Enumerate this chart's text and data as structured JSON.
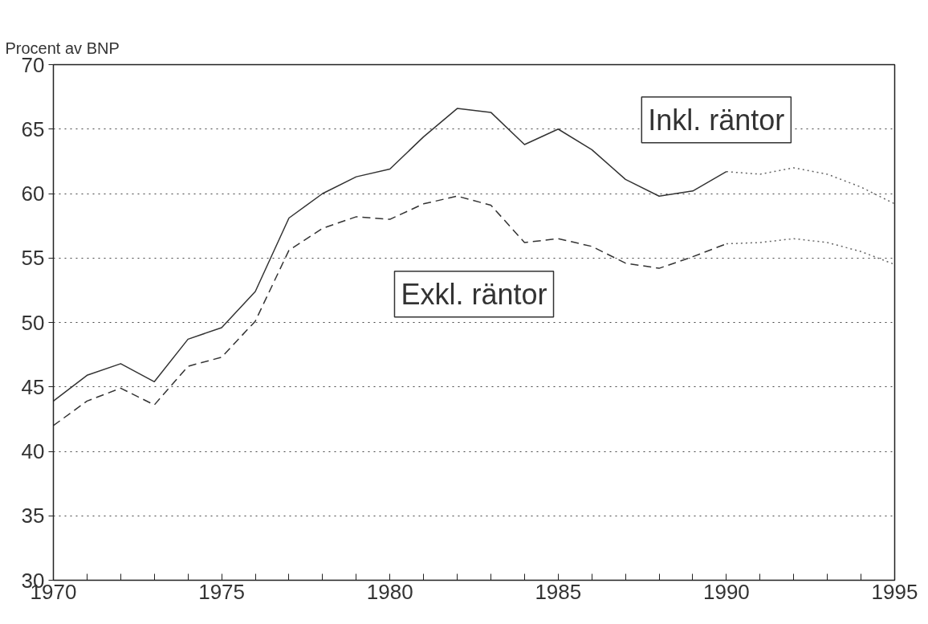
{
  "chart_data": {
    "type": "line",
    "ylabel": "Procent av BNP",
    "xlim": [
      1970,
      1995
    ],
    "ylim": [
      30,
      70
    ],
    "xticks": [
      1970,
      {
        "value": 1971,
        "label": null
      },
      {
        "value": 1972,
        "label": null
      },
      {
        "value": 1973,
        "label": null
      },
      {
        "value": 1974,
        "label": null
      },
      1975,
      {
        "value": 1976,
        "label": null
      },
      {
        "value": 1977,
        "label": null
      },
      {
        "value": 1978,
        "label": null
      },
      {
        "value": 1979,
        "label": null
      },
      1980,
      {
        "value": 1981,
        "label": null
      },
      {
        "value": 1982,
        "label": null
      },
      {
        "value": 1983,
        "label": null
      },
      {
        "value": 1984,
        "label": null
      },
      1985,
      {
        "value": 1986,
        "label": null
      },
      {
        "value": 1987,
        "label": null
      },
      {
        "value": 1988,
        "label": null
      },
      {
        "value": 1989,
        "label": null
      },
      1990,
      {
        "value": 1991,
        "label": null
      },
      {
        "value": 1992,
        "label": null
      },
      {
        "value": 1993,
        "label": null
      },
      {
        "value": 1994,
        "label": null
      },
      1995
    ],
    "yticks": [
      30,
      35,
      40,
      45,
      50,
      55,
      60,
      65,
      70
    ],
    "grid": "y",
    "annotations": [
      "Inkl. räntor",
      "Exkl. räntor"
    ],
    "series": [
      {
        "color": "#333333",
        "line_style": "solid",
        "x": [
          1970,
          1971,
          1972,
          1973,
          1974,
          1975,
          1976,
          1977,
          1978,
          1979,
          1980,
          1981,
          1982,
          1983,
          1984,
          1985,
          1986,
          1987,
          1988,
          1989,
          1990
        ],
        "values": [
          43.9,
          45.9,
          46.8,
          45.4,
          48.7,
          49.6,
          52.4,
          58.1,
          60.0,
          61.3,
          61.9,
          64.4,
          66.6,
          66.3,
          63.8,
          65.0,
          63.4,
          61.1,
          59.8,
          60.2,
          61.7
        ]
      },
      {
        "color": "#666666",
        "line_style": "dotted",
        "x": [
          1990,
          1991,
          1992,
          1993,
          1994,
          1995
        ],
        "values": [
          61.7,
          61.5,
          62.0,
          61.5,
          60.5,
          59.2
        ]
      },
      {
        "color": "#333333",
        "line_style": "dashed",
        "x": [
          1970,
          1971,
          1972,
          1973,
          1974,
          1975,
          1976,
          1977,
          1978,
          1979,
          1980,
          1981,
          1982,
          1983,
          1984,
          1985,
          1986,
          1987,
          1988,
          1989,
          1990
        ],
        "values": [
          42.0,
          43.9,
          44.9,
          43.6,
          46.6,
          47.3,
          50.1,
          55.6,
          57.3,
          58.2,
          58.0,
          59.2,
          59.8,
          59.1,
          56.2,
          56.5,
          55.9,
          54.6,
          54.2,
          55.1,
          56.1
        ]
      },
      {
        "color": "#666666",
        "line_style": "dotted",
        "x": [
          1990,
          1991,
          1992,
          1993,
          1994,
          1995
        ],
        "values": [
          56.1,
          56.2,
          56.5,
          56.2,
          55.5,
          54.5
        ]
      }
    ]
  }
}
